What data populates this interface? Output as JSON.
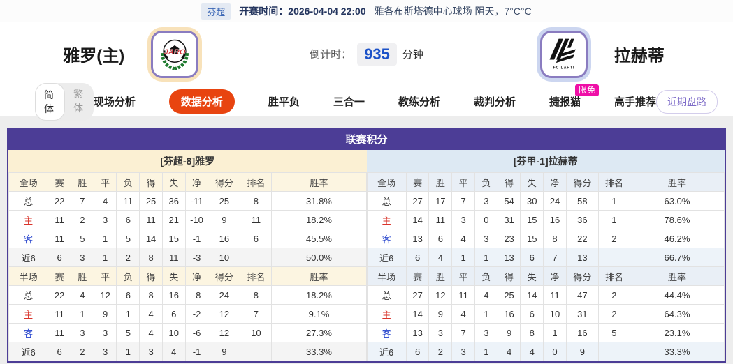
{
  "topbar": {
    "league_badge": "芬超",
    "kickoff_label": "开赛时间：",
    "kickoff_time": "2026-04-04 22:00",
    "venue_weather": "雅各布斯塔德中心球场  阴天，7°C°C"
  },
  "header": {
    "home_team": "雅罗(主)",
    "away_team": "拉赫蒂",
    "home_logo_text": "JARO",
    "away_logo_text": "FC LAHTI",
    "countdown_label": "倒计时：",
    "countdown_value": "935",
    "countdown_unit": "分钟"
  },
  "nav": {
    "lang_simplified": "简体",
    "lang_traditional": "繁体",
    "tabs": [
      {
        "label": "现场分析"
      },
      {
        "label": "数据分析",
        "active": true
      },
      {
        "label": "胜平负"
      },
      {
        "label": "三合一"
      },
      {
        "label": "教练分析"
      },
      {
        "label": "裁判分析"
      },
      {
        "label": "捷报猫",
        "badge": "限免"
      },
      {
        "label": "高手推荐"
      }
    ],
    "recent_trend_button": "近期盘路"
  },
  "league_table": {
    "title": "联赛积分",
    "home_subtitle": "[芬超-8]雅罗",
    "away_subtitle": "[芬甲-1]拉赫蒂",
    "full_header": [
      "全场",
      "赛",
      "胜",
      "平",
      "负",
      "得",
      "失",
      "净",
      "得分",
      "排名",
      "胜率"
    ],
    "half_header": [
      "半场",
      "赛",
      "胜",
      "平",
      "负",
      "得",
      "失",
      "净",
      "得分",
      "排名",
      "胜率"
    ],
    "home_full_rows": [
      [
        "总",
        "22",
        "7",
        "4",
        "11",
        "25",
        "36",
        "-11",
        "25",
        "8",
        "31.8%"
      ],
      [
        "主",
        "11",
        "2",
        "3",
        "6",
        "11",
        "21",
        "-10",
        "9",
        "11",
        "18.2%"
      ],
      [
        "客",
        "11",
        "5",
        "1",
        "5",
        "14",
        "15",
        "-1",
        "16",
        "6",
        "45.5%"
      ],
      [
        "近6",
        "6",
        "3",
        "1",
        "2",
        "8",
        "11",
        "-3",
        "10",
        "",
        "50.0%"
      ]
    ],
    "home_half_rows": [
      [
        "总",
        "22",
        "4",
        "12",
        "6",
        "8",
        "16",
        "-8",
        "24",
        "8",
        "18.2%"
      ],
      [
        "主",
        "11",
        "1",
        "9",
        "1",
        "4",
        "6",
        "-2",
        "12",
        "7",
        "9.1%"
      ],
      [
        "客",
        "11",
        "3",
        "3",
        "5",
        "4",
        "10",
        "-6",
        "12",
        "10",
        "27.3%"
      ],
      [
        "近6",
        "6",
        "2",
        "3",
        "1",
        "3",
        "4",
        "-1",
        "9",
        "",
        "33.3%"
      ]
    ],
    "away_full_rows": [
      [
        "总",
        "27",
        "17",
        "7",
        "3",
        "54",
        "30",
        "24",
        "58",
        "1",
        "63.0%"
      ],
      [
        "主",
        "14",
        "11",
        "3",
        "0",
        "31",
        "15",
        "16",
        "36",
        "1",
        "78.6%"
      ],
      [
        "客",
        "13",
        "6",
        "4",
        "3",
        "23",
        "15",
        "8",
        "22",
        "2",
        "46.2%"
      ],
      [
        "近6",
        "6",
        "4",
        "1",
        "1",
        "13",
        "6",
        "7",
        "13",
        "",
        "66.7%"
      ]
    ],
    "away_half_rows": [
      [
        "总",
        "27",
        "12",
        "11",
        "4",
        "25",
        "14",
        "11",
        "47",
        "2",
        "44.4%"
      ],
      [
        "主",
        "14",
        "9",
        "4",
        "1",
        "16",
        "6",
        "10",
        "31",
        "2",
        "64.3%"
      ],
      [
        "客",
        "13",
        "3",
        "7",
        "3",
        "9",
        "8",
        "1",
        "16",
        "5",
        "23.1%"
      ],
      [
        "近6",
        "6",
        "2",
        "3",
        "1",
        "4",
        "4",
        "0",
        "9",
        "",
        "33.3%"
      ]
    ]
  },
  "colors": {
    "header_purple": "#4c3d96",
    "accent_orange": "#e84410",
    "badge_pink": "#ef0fa7",
    "countdown_blue": "#1c52c8",
    "home_row_red": "#d9342b",
    "away_row_blue": "#2442cc",
    "home_tint": "#fbf0d3",
    "away_tint": "#dde9f3"
  }
}
